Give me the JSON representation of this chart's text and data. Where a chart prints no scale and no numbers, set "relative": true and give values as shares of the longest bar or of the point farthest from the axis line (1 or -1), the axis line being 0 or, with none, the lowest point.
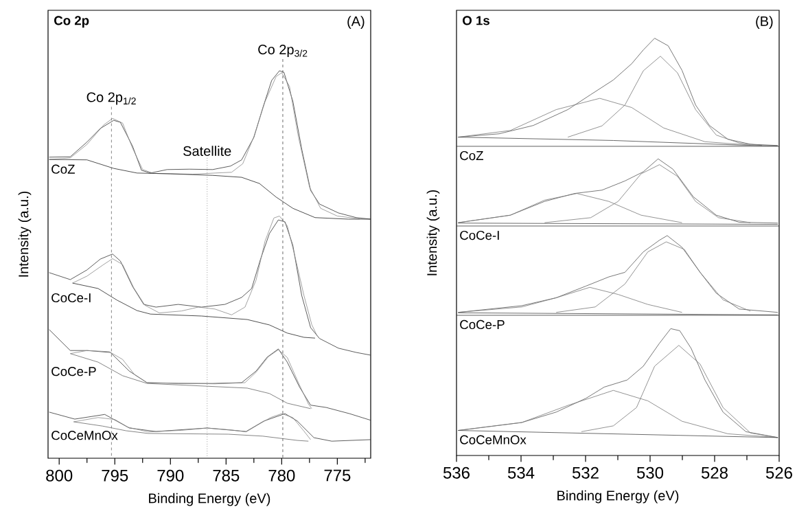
{
  "chart_data": [
    {
      "type": "line",
      "relative": true,
      "title": "Co 2p",
      "annotations": [
        "(A)"
      ],
      "xlabel": "Binding Energy (eV)",
      "ylabel": "Intensity (a.u.)",
      "xlim": [
        801,
        772
      ],
      "xticks": [
        800,
        {
          "value": 797.5,
          "label": null
        },
        795,
        {
          "value": 792.5,
          "label": null
        },
        790,
        {
          "value": 787.5,
          "label": null
        },
        785,
        {
          "value": 782.5,
          "label": null
        },
        780,
        {
          "value": 777.5,
          "label": null
        },
        775,
        {
          "value": 772.5,
          "label": null
        }
      ],
      "ref_lines": [
        {
          "axis": "x",
          "value": 795.3,
          "label": "Co 2p$_{1/2}$",
          "line_style": "dashed",
          "color": "#666666"
        },
        {
          "axis": "x",
          "value": 786.7,
          "label": "Satellite",
          "line_style": "dotted",
          "color": "#666666"
        },
        {
          "axis": "x",
          "value": 779.9,
          "label": "Co 2p$_{3/2}$",
          "line_style": "dashed",
          "color": "#444444"
        }
      ],
      "series": [
        {
          "name": "CoZ",
          "type": "line",
          "color": "#333333",
          "x": [
            800.9,
            799.0,
            797.5,
            796.3,
            795.1,
            794.5,
            793.4,
            792.6,
            791.8,
            790.3,
            788.3,
            786.2,
            784.6,
            783.6,
            782.5,
            781.7,
            780.9,
            780.2,
            779.8,
            779.0,
            778.2,
            777.4,
            776.6,
            774.9,
            773.3,
            772.0
          ],
          "values": [
            0.777,
            0.778,
            0.816,
            0.851,
            0.872,
            0.867,
            0.805,
            0.743,
            0.736,
            0.745,
            0.746,
            0.745,
            0.754,
            0.77,
            0.828,
            0.904,
            0.975,
            1.0,
            0.996,
            0.922,
            0.798,
            0.691,
            0.656,
            0.633,
            0.621,
            0.617
          ]
        },
        {
          "type": "line",
          "color": "#8a8a8a",
          "x": [
            800.9,
            799.0,
            797.5,
            796.0,
            795.2,
            794.3,
            793.4,
            792.5,
            791.5,
            788.0,
            786.0,
            784.5,
            783.5,
            782.5,
            781.5,
            780.5,
            780.0,
            779.3,
            778.5,
            777.5,
            776.5,
            775.0,
            773.0
          ],
          "values": [
            0.771,
            0.775,
            0.81,
            0.86,
            0.877,
            0.865,
            0.8,
            0.745,
            0.735,
            0.733,
            0.736,
            0.738,
            0.76,
            0.83,
            0.92,
            0.985,
            0.995,
            0.96,
            0.83,
            0.7,
            0.645,
            0.625,
            0.618
          ]
        },
        {
          "type": "line",
          "color": "#222222",
          "x": [
            800.9,
            797.5,
            795.1,
            793.0,
            790.0,
            786.2,
            783.6,
            782.0,
            780.5,
            779.0,
            777.0,
            774.0,
            772.0
          ],
          "values": [
            0.771,
            0.77,
            0.748,
            0.736,
            0.734,
            0.73,
            0.725,
            0.709,
            0.674,
            0.645,
            0.621,
            0.617,
            0.617
          ]
        },
        {
          "name": "CoCe-I",
          "type": "line",
          "color": "#333333",
          "x": [
            800.9,
            799.0,
            797.5,
            796.3,
            795.2,
            794.5,
            793.4,
            792.4,
            791.3,
            789.3,
            787.2,
            785.1,
            783.6,
            782.7,
            781.9,
            781.1,
            780.3,
            779.7,
            779.0,
            778.2,
            777.4,
            776.6,
            774.9,
            773.3,
            772.0
          ],
          "values": [
            0.479,
            0.461,
            0.486,
            0.514,
            0.527,
            0.509,
            0.443,
            0.397,
            0.39,
            0.397,
            0.39,
            0.397,
            0.415,
            0.438,
            0.514,
            0.58,
            0.615,
            0.61,
            0.55,
            0.42,
            0.337,
            0.309,
            0.284,
            0.273,
            0.266
          ]
        },
        {
          "type": "line",
          "color": "#8a8a8a",
          "x": [
            798.8,
            797.5,
            796.0,
            795.2,
            794.3,
            793.3,
            792.3,
            791.0,
            789.0,
            787.5,
            786.0,
            784.5,
            783.3,
            782.3,
            781.5,
            780.7,
            780.2,
            779.5,
            778.8,
            778.0,
            777.3,
            776.8
          ],
          "values": [
            0.452,
            0.47,
            0.5,
            0.515,
            0.5,
            0.44,
            0.395,
            0.375,
            0.38,
            0.39,
            0.385,
            0.37,
            0.39,
            0.46,
            0.56,
            0.62,
            0.625,
            0.6,
            0.52,
            0.42,
            0.345,
            0.315
          ]
        },
        {
          "type": "line",
          "color": "#222222",
          "x": [
            798.8,
            796.5,
            794.8,
            793.0,
            791.8,
            787.2,
            783.1,
            781.1,
            779.5,
            778.0,
            777.0
          ],
          "values": [
            0.452,
            0.438,
            0.408,
            0.381,
            0.372,
            0.367,
            0.358,
            0.344,
            0.323,
            0.312,
            0.31
          ]
        },
        {
          "name": "CoCe-P",
          "type": "line",
          "color": "#333333",
          "x": [
            800.9,
            799.0,
            797.5,
            795.4,
            793.7,
            792.1,
            789.3,
            786.2,
            783.6,
            782.3,
            781.3,
            780.3,
            779.5,
            778.4,
            777.4,
            776.0,
            773.9,
            772.0
          ],
          "values": [
            0.332,
            0.278,
            0.278,
            0.273,
            0.225,
            0.195,
            0.193,
            0.193,
            0.195,
            0.225,
            0.261,
            0.282,
            0.248,
            0.184,
            0.137,
            0.131,
            0.115,
            0.098
          ]
        },
        {
          "type": "line",
          "color": "#8a8a8a",
          "x": [
            799.0,
            797.5,
            795.5,
            794.3,
            793.2,
            792.1,
            786.0,
            783.3,
            782.3,
            781.2,
            780.3,
            779.5,
            778.5,
            777.6,
            777.3
          ],
          "values": [
            0.27,
            0.278,
            0.275,
            0.255,
            0.215,
            0.195,
            0.192,
            0.195,
            0.222,
            0.262,
            0.28,
            0.26,
            0.195,
            0.14,
            0.128
          ]
        },
        {
          "type": "line",
          "color": "#666666",
          "x": [
            799.0,
            796.5,
            794.3,
            792.1,
            783.1,
            781.1,
            779.5,
            777.4
          ],
          "values": [
            0.27,
            0.248,
            0.213,
            0.193,
            0.181,
            0.167,
            0.142,
            0.128
          ]
        },
        {
          "name": "CoCeMnOx",
          "type": "line",
          "color": "#333333",
          "x": [
            800.9,
            798.6,
            795.9,
            793.7,
            791.3,
            786.7,
            783.2,
            781.6,
            779.7,
            778.6,
            777.1,
            775.5,
            772.0
          ],
          "values": [
            0.119,
            0.101,
            0.113,
            0.078,
            0.069,
            0.078,
            0.069,
            0.096,
            0.115,
            0.096,
            0.053,
            0.044,
            0.048
          ]
        },
        {
          "type": "line",
          "color": "#8a8a8a",
          "x": [
            798.7,
            796.5,
            795.0,
            793.8,
            792.0,
            789.0,
            786.7,
            784.5,
            783.2,
            782.2,
            781.0,
            780.0,
            779.0,
            778.0,
            777.4
          ],
          "values": [
            0.094,
            0.105,
            0.1,
            0.08,
            0.068,
            0.072,
            0.078,
            0.073,
            0.068,
            0.085,
            0.105,
            0.115,
            0.105,
            0.07,
            0.048
          ]
        },
        {
          "type": "line",
          "color": "#666666",
          "x": [
            798.7,
            796.1,
            794.0,
            792.0,
            784.8,
            781.7,
            778.6,
            777.6
          ],
          "values": [
            0.094,
            0.083,
            0.071,
            0.064,
            0.062,
            0.057,
            0.046,
            0.044
          ]
        }
      ]
    },
    {
      "type": "line",
      "relative": true,
      "title": "O 1s",
      "annotations": [
        "(B)"
      ],
      "xlabel": "Binding Energy (eV)",
      "ylabel": "Intensity (a.u.)",
      "xlim": [
        536,
        526
      ],
      "xticks": [
        536,
        {
          "value": 535,
          "label": null
        },
        534,
        {
          "value": 533,
          "label": null
        },
        532,
        {
          "value": 531,
          "label": null
        },
        530,
        {
          "value": 529,
          "label": null
        },
        528,
        {
          "value": 527,
          "label": null
        },
        526
      ],
      "ref_lines": [
        {
          "axis": "y",
          "value": 0.741,
          "line_style": "solid",
          "color": "#333333"
        },
        {
          "axis": "y",
          "value": 0.55,
          "line_style": "solid",
          "color": "#333333"
        },
        {
          "axis": "y",
          "value": 0.336,
          "line_style": "solid",
          "color": "#333333"
        }
      ],
      "series": [
        {
          "name": "CoZ",
          "type": "line",
          "color": "#555555",
          "x": [
            535.95,
            534.68,
            533.62,
            532.55,
            531.84,
            531.14,
            530.57,
            530.21,
            529.86,
            529.44,
            529.01,
            528.59,
            528.16,
            527.59,
            526.89,
            526.04
          ],
          "values": [
            0.763,
            0.771,
            0.791,
            0.829,
            0.865,
            0.9,
            0.939,
            0.972,
            1.0,
            0.982,
            0.923,
            0.84,
            0.791,
            0.758,
            0.746,
            0.743
          ]
        },
        {
          "type": "line",
          "color": "#777777",
          "x": [
            532.55,
            531.49,
            530.78,
            530.21,
            529.68,
            529.15,
            528.59,
            527.95,
            527.24,
            526.53
          ],
          "values": [
            0.763,
            0.79,
            0.84,
            0.922,
            0.957,
            0.917,
            0.829,
            0.768,
            0.749,
            0.743
          ]
        },
        {
          "type": "line",
          "color": "#777777",
          "x": [
            535.95,
            534.33,
            532.91,
            531.56,
            530.57,
            529.58,
            528.3,
            526.89
          ],
          "values": [
            0.763,
            0.779,
            0.829,
            0.856,
            0.834,
            0.785,
            0.752,
            0.744
          ]
        },
        {
          "type": "line",
          "color": "#444444",
          "x": [
            535.95,
            531.14,
            527.24,
            526.04
          ],
          "values": [
            0.763,
            0.755,
            0.744,
            0.742
          ]
        },
        {
          "name": "CoCe-I",
          "type": "line",
          "color": "#555555",
          "x": [
            535.95,
            534.33,
            533.27,
            532.34,
            531.49,
            530.78,
            530.21,
            529.75,
            529.29,
            528.66,
            527.95,
            527.24,
            526.04
          ],
          "values": [
            0.558,
            0.576,
            0.609,
            0.628,
            0.636,
            0.658,
            0.68,
            0.711,
            0.686,
            0.62,
            0.576,
            0.559,
            0.557
          ]
        },
        {
          "type": "line",
          "color": "#777777",
          "x": [
            533.27,
            531.84,
            530.99,
            530.28,
            529.71,
            529.15,
            528.59,
            527.88,
            526.89
          ],
          "values": [
            0.558,
            0.57,
            0.609,
            0.675,
            0.697,
            0.669,
            0.609,
            0.57,
            0.558
          ]
        },
        {
          "type": "line",
          "color": "#777777",
          "x": [
            535.95,
            534.33,
            533.27,
            532.27,
            531.28,
            530.28,
            529.01
          ],
          "values": [
            0.558,
            0.576,
            0.612,
            0.628,
            0.609,
            0.576,
            0.558
          ]
        },
        {
          "type": "line",
          "color": "#444444",
          "x": [
            535.95,
            526.04
          ],
          "values": [
            0.557,
            0.554
          ]
        },
        {
          "name": "CoCe-P",
          "type": "line",
          "color": "#555555",
          "x": [
            535.95,
            533.98,
            532.91,
            531.99,
            531.28,
            530.78,
            530.21,
            529.71,
            529.47,
            529.01,
            528.45,
            527.95,
            527.24,
            526.04
          ],
          "values": [
            0.343,
            0.359,
            0.378,
            0.406,
            0.428,
            0.439,
            0.488,
            0.516,
            0.527,
            0.499,
            0.439,
            0.389,
            0.351,
            0.343
          ]
        },
        {
          "type": "line",
          "color": "#777777",
          "x": [
            532.91,
            531.7,
            530.78,
            530.07,
            529.5,
            528.94,
            528.45,
            527.74,
            526.89
          ],
          "values": [
            0.343,
            0.356,
            0.411,
            0.488,
            0.512,
            0.494,
            0.439,
            0.373,
            0.346
          ]
        },
        {
          "type": "line",
          "color": "#777777",
          "x": [
            535.95,
            533.98,
            532.91,
            531.87,
            530.99,
            530.07,
            529.01
          ],
          "values": [
            0.343,
            0.356,
            0.378,
            0.403,
            0.386,
            0.362,
            0.343
          ]
        },
        {
          "type": "line",
          "color": "#444444",
          "x": [
            535.95,
            526.04
          ],
          "values": [
            0.342,
            0.337
          ]
        },
        {
          "name": "CoCeMnOx",
          "type": "line",
          "color": "#555555",
          "x": [
            535.95,
            533.98,
            532.91,
            531.99,
            531.42,
            530.71,
            530.21,
            529.71,
            529.36,
            529.08,
            528.73,
            528.3,
            527.74,
            527.03,
            526.04
          ],
          "values": [
            0.06,
            0.079,
            0.104,
            0.137,
            0.164,
            0.181,
            0.214,
            0.269,
            0.304,
            0.299,
            0.257,
            0.181,
            0.104,
            0.057,
            0.043
          ]
        },
        {
          "type": "line",
          "color": "#777777",
          "x": [
            532.13,
            531.14,
            530.42,
            529.86,
            529.11,
            528.45,
            527.74,
            526.89,
            526.04
          ],
          "values": [
            0.057,
            0.071,
            0.115,
            0.214,
            0.264,
            0.219,
            0.115,
            0.054,
            0.043
          ]
        },
        {
          "type": "line",
          "color": "#777777",
          "x": [
            535.95,
            533.98,
            532.55,
            531.14,
            530.07,
            529.01,
            527.59,
            526.04
          ],
          "values": [
            0.06,
            0.079,
            0.12,
            0.156,
            0.131,
            0.082,
            0.052,
            0.043
          ]
        },
        {
          "type": "line",
          "color": "#444444",
          "x": [
            535.95,
            526.04
          ],
          "values": [
            0.06,
            0.043
          ]
        }
      ]
    }
  ]
}
